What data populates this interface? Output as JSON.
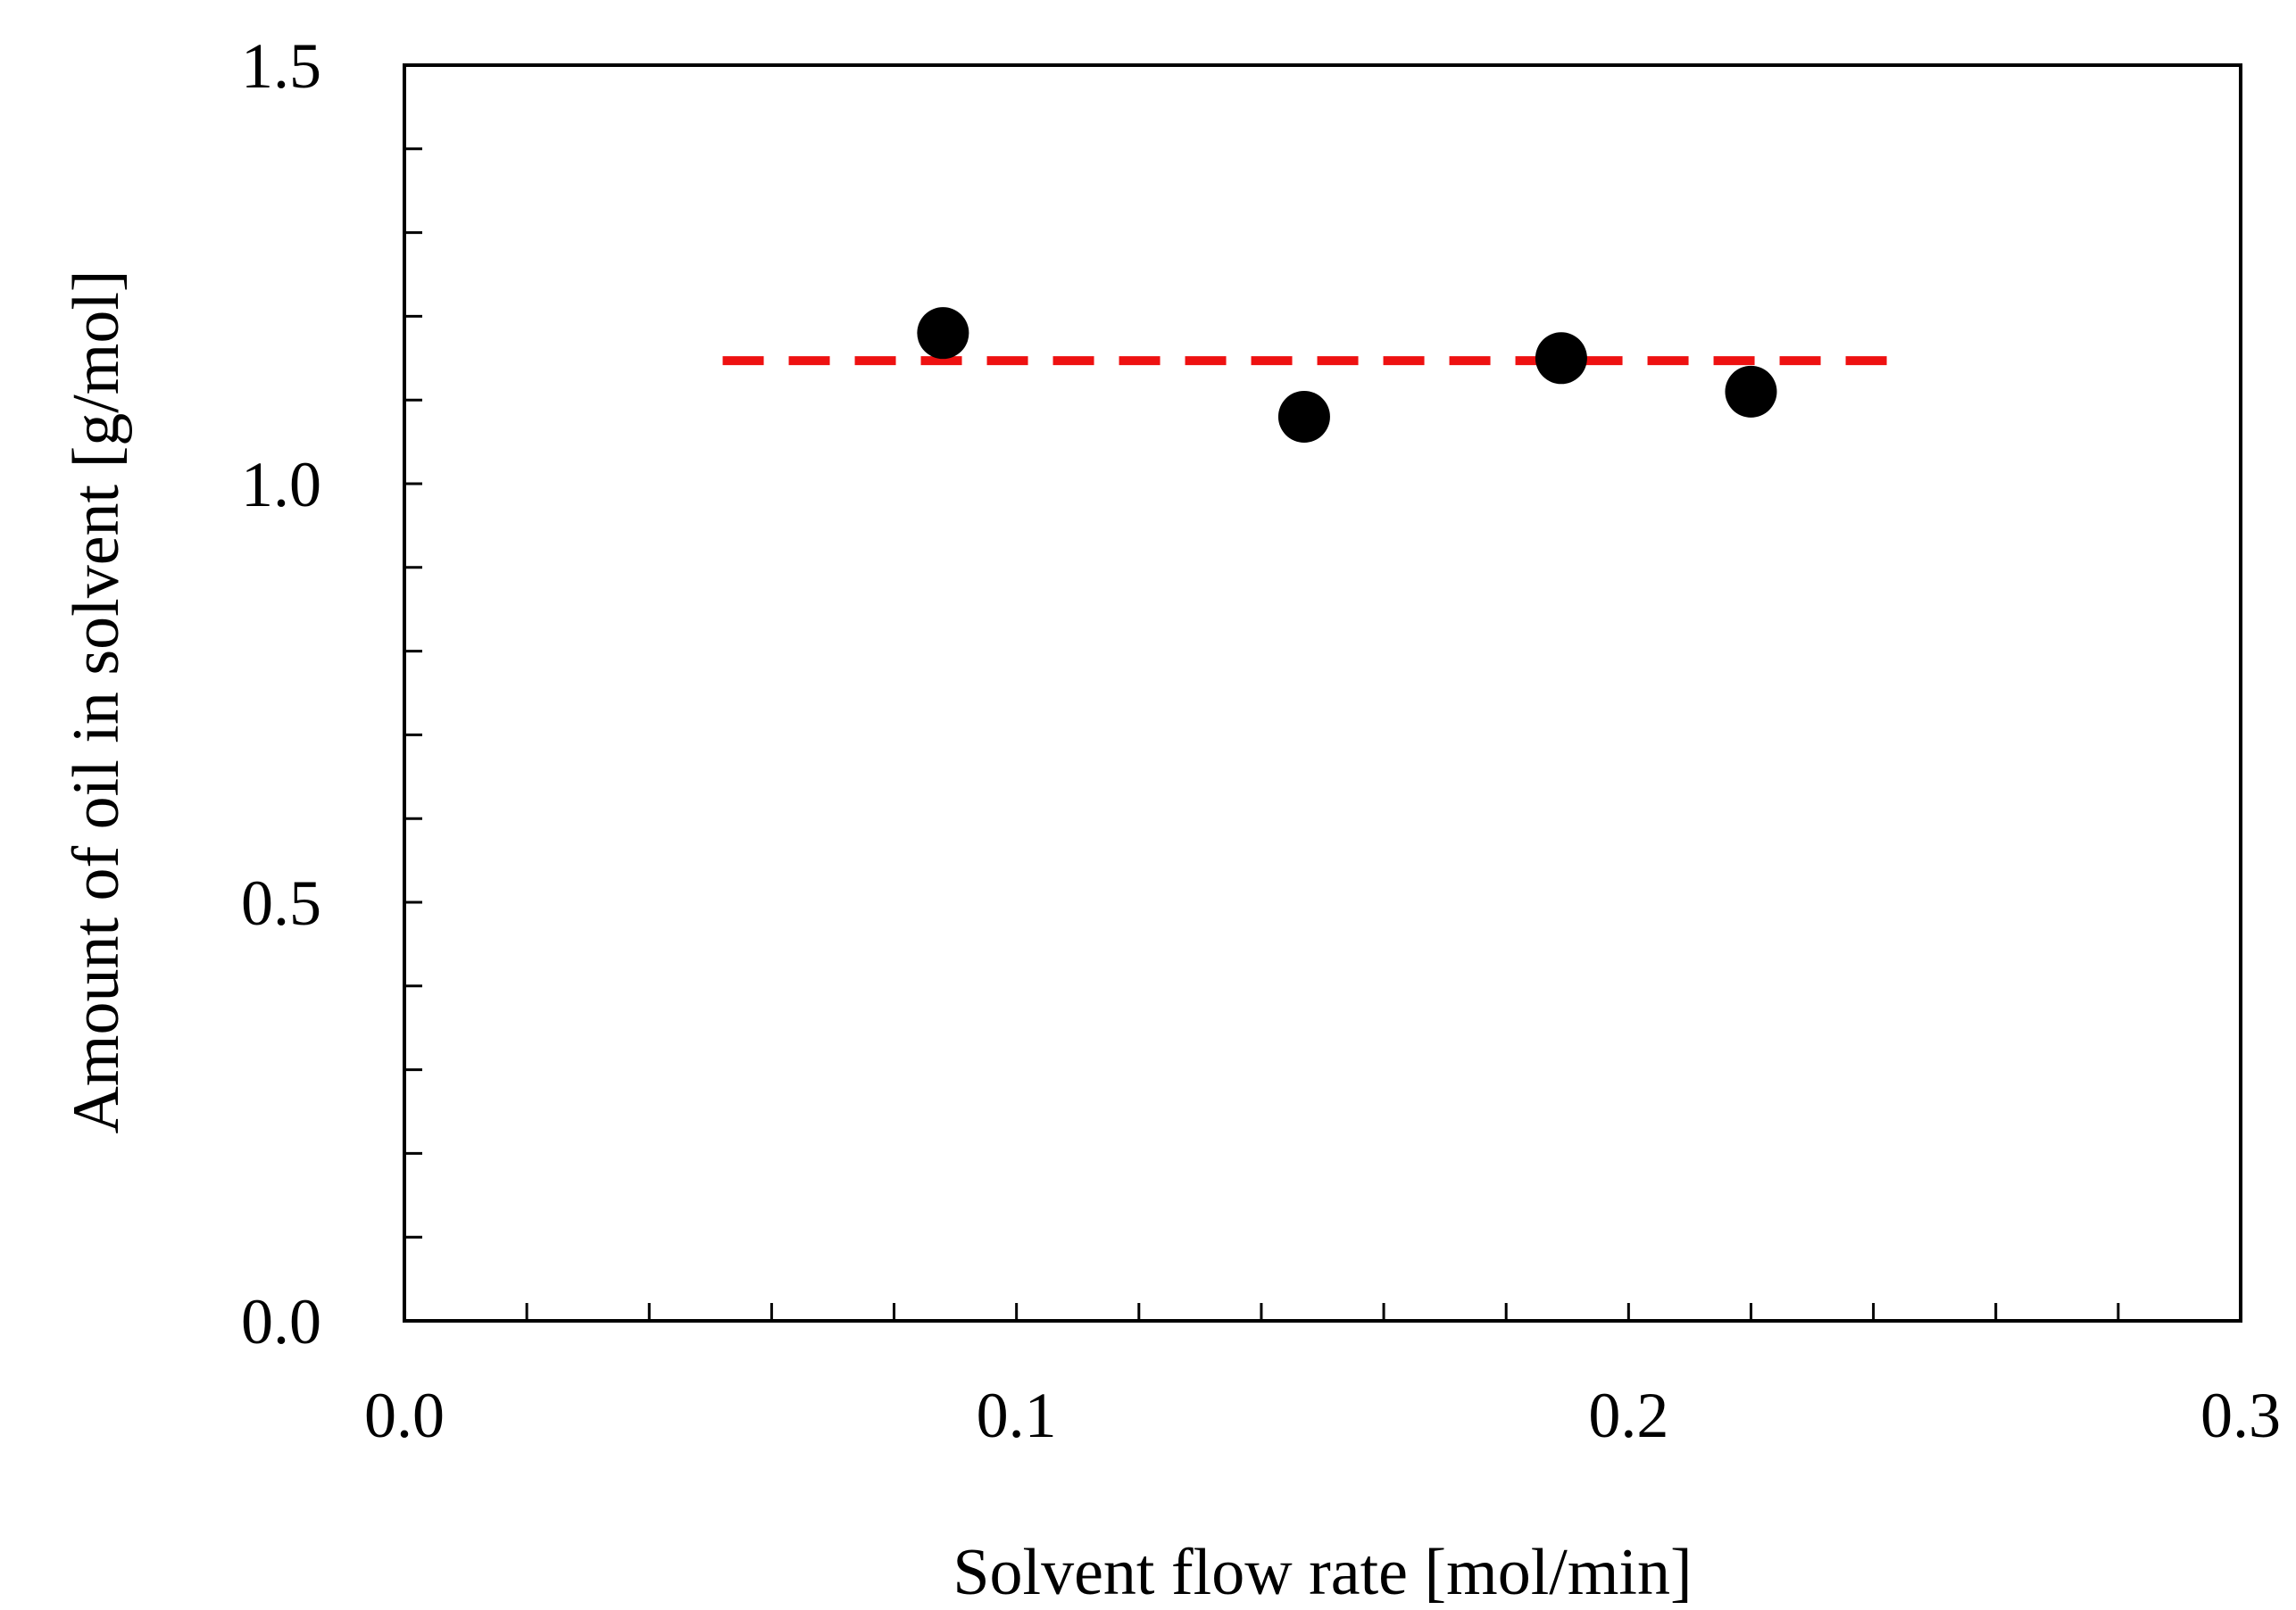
{
  "chart_data": {
    "type": "scatter",
    "title": "",
    "xlabel": "Solvent  flow  rate [mol/min]",
    "ylabel": "Amount  of  oil  in  solvent  [g/mol]",
    "xlim": [
      0.0,
      0.3
    ],
    "ylim": [
      0.0,
      1.5
    ],
    "x_ticks": [
      0.0,
      0.1,
      0.2,
      0.3
    ],
    "x_tick_labels": [
      "0.0",
      "0.1",
      "0.2",
      "0.3"
    ],
    "x_minor_step": 0.02,
    "y_ticks": [
      0.0,
      0.5,
      1.0,
      1.5
    ],
    "y_tick_labels": [
      "0.0",
      "0.5",
      "1.0",
      "1.5"
    ],
    "y_minor_step": 0.1,
    "grid": false,
    "series": [
      {
        "type": "scatter",
        "x": [
          0.088,
          0.147,
          0.189,
          0.22
        ],
        "y": [
          1.18,
          1.08,
          1.15,
          1.11
        ],
        "color": "#000000"
      },
      {
        "type": "line",
        "style": "dashed",
        "x": [
          0.052,
          0.243
        ],
        "y": [
          1.147,
          1.147
        ],
        "color": "#ee1111"
      }
    ]
  }
}
